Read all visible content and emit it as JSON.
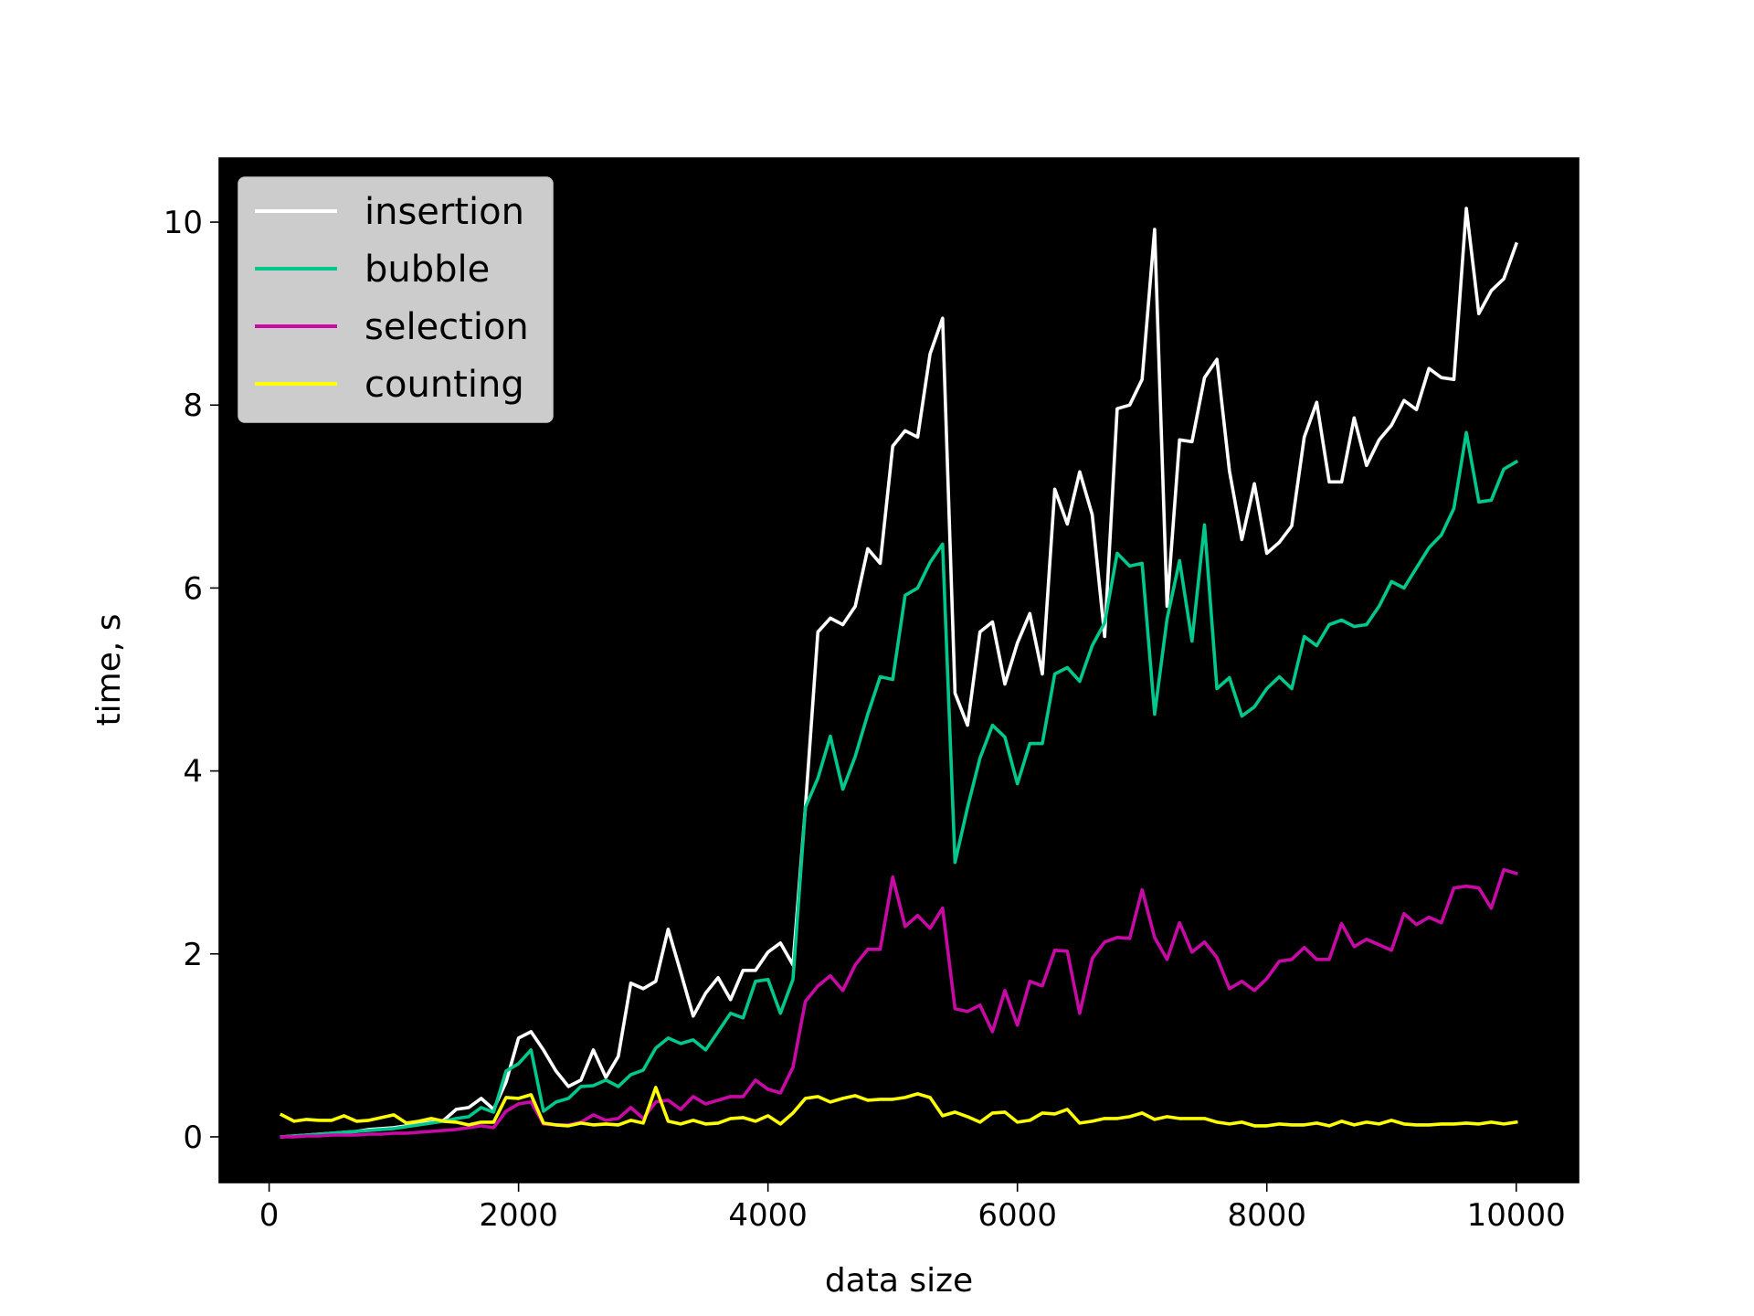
{
  "chart_data": {
    "type": "line",
    "title": "",
    "xlabel": "data size",
    "ylabel": "time, s",
    "xlim": [
      -400,
      10500
    ],
    "ylim": [
      -0.5,
      10.7
    ],
    "xticks": [
      0,
      2000,
      4000,
      6000,
      8000,
      10000
    ],
    "xtick_labels": [
      "0",
      "2000",
      "4000",
      "6000",
      "8000",
      "10000"
    ],
    "yticks": [
      0,
      2,
      4,
      6,
      8,
      10
    ],
    "ytick_labels": [
      "0",
      "2",
      "4",
      "6",
      "8",
      "10"
    ],
    "plot_background": "#000000",
    "grid": false,
    "legend_position": "top-left",
    "x": [
      100,
      200,
      300,
      400,
      500,
      600,
      700,
      800,
      900,
      1000,
      1100,
      1200,
      1300,
      1400,
      1500,
      1600,
      1700,
      1800,
      1900,
      2000,
      2100,
      2200,
      2300,
      2400,
      2500,
      2600,
      2700,
      2800,
      2900,
      3000,
      3100,
      3200,
      3300,
      3400,
      3500,
      3600,
      3700,
      3800,
      3900,
      4000,
      4100,
      4200,
      4300,
      4400,
      4500,
      4600,
      4700,
      4800,
      4900,
      5000,
      5100,
      5200,
      5300,
      5400,
      5500,
      5600,
      5700,
      5800,
      5900,
      6000,
      6100,
      6200,
      6300,
      6400,
      6500,
      6600,
      6700,
      6800,
      6900,
      7000,
      7100,
      7200,
      7300,
      7400,
      7500,
      7600,
      7700,
      7800,
      7900,
      8000,
      8100,
      8200,
      8300,
      8400,
      8500,
      8600,
      8700,
      8800,
      8900,
      9000,
      9100,
      9200,
      9300,
      9400,
      9500,
      9600,
      9700,
      9800,
      9900,
      10000
    ],
    "series": [
      {
        "name": "insertion",
        "color": "#ffffff",
        "values": [
          0.0,
          0.01,
          0.02,
          0.03,
          0.04,
          0.05,
          0.06,
          0.08,
          0.09,
          0.1,
          0.12,
          0.14,
          0.16,
          0.18,
          0.3,
          0.32,
          0.42,
          0.3,
          0.6,
          1.08,
          1.15,
          0.95,
          0.72,
          0.55,
          0.62,
          0.95,
          0.65,
          0.88,
          1.68,
          1.62,
          1.7,
          2.27,
          1.8,
          1.32,
          1.57,
          1.74,
          1.5,
          1.82,
          1.82,
          2.02,
          2.12,
          1.88,
          3.6,
          5.52,
          5.67,
          5.6,
          5.8,
          6.43,
          6.27,
          7.55,
          7.72,
          7.65,
          8.56,
          8.95,
          4.85,
          4.5,
          5.52,
          5.63,
          4.95,
          5.4,
          5.72,
          5.06,
          7.08,
          6.7,
          7.27,
          6.8,
          5.47,
          7.96,
          8.0,
          8.28,
          9.92,
          5.8,
          7.62,
          7.6,
          8.3,
          8.5,
          7.28,
          6.53,
          7.14,
          6.38,
          6.5,
          6.68,
          7.65,
          8.03,
          7.16,
          7.16,
          7.86,
          7.34,
          7.62,
          7.78,
          8.05,
          7.95,
          8.4,
          8.3,
          8.28,
          10.15,
          9.0,
          9.25,
          9.38,
          9.76
        ]
      },
      {
        "name": "bubble",
        "color": "#00c88c",
        "values": [
          0.0,
          0.01,
          0.02,
          0.03,
          0.04,
          0.05,
          0.06,
          0.07,
          0.08,
          0.09,
          0.11,
          0.13,
          0.15,
          0.17,
          0.2,
          0.22,
          0.32,
          0.27,
          0.72,
          0.8,
          0.95,
          0.28,
          0.38,
          0.42,
          0.55,
          0.56,
          0.62,
          0.55,
          0.68,
          0.73,
          0.97,
          1.08,
          1.02,
          1.06,
          0.95,
          1.15,
          1.35,
          1.3,
          1.7,
          1.72,
          1.35,
          1.72,
          3.6,
          3.92,
          4.38,
          3.8,
          4.16,
          4.62,
          5.03,
          5.0,
          5.92,
          6.0,
          6.28,
          6.48,
          3.0,
          3.6,
          4.14,
          4.5,
          4.37,
          3.86,
          4.3,
          4.3,
          5.06,
          5.13,
          4.98,
          5.37,
          5.62,
          6.38,
          6.24,
          6.27,
          4.62,
          5.66,
          6.3,
          5.42,
          6.69,
          4.9,
          5.02,
          4.6,
          4.7,
          4.9,
          5.03,
          4.9,
          5.47,
          5.37,
          5.6,
          5.65,
          5.58,
          5.6,
          5.8,
          6.07,
          6.0,
          6.22,
          6.44,
          6.58,
          6.87,
          7.7,
          6.94,
          6.96,
          7.3,
          7.38
        ]
      },
      {
        "name": "selection",
        "color": "#c80aa5",
        "values": [
          0.0,
          0.0,
          0.01,
          0.01,
          0.02,
          0.02,
          0.02,
          0.03,
          0.03,
          0.04,
          0.04,
          0.05,
          0.06,
          0.07,
          0.08,
          0.1,
          0.12,
          0.1,
          0.28,
          0.36,
          0.38,
          0.14,
          0.13,
          0.13,
          0.16,
          0.24,
          0.18,
          0.2,
          0.32,
          0.2,
          0.38,
          0.4,
          0.3,
          0.44,
          0.36,
          0.4,
          0.44,
          0.44,
          0.62,
          0.52,
          0.48,
          0.76,
          1.48,
          1.65,
          1.76,
          1.6,
          1.88,
          2.05,
          2.05,
          2.84,
          2.3,
          2.42,
          2.28,
          2.5,
          1.4,
          1.37,
          1.44,
          1.15,
          1.6,
          1.22,
          1.7,
          1.65,
          2.04,
          2.03,
          1.35,
          1.95,
          2.13,
          2.18,
          2.17,
          2.7,
          2.18,
          1.94,
          2.34,
          2.02,
          2.13,
          1.96,
          1.62,
          1.7,
          1.6,
          1.73,
          1.92,
          1.94,
          2.07,
          1.94,
          1.94,
          2.33,
          2.08,
          2.16,
          2.1,
          2.04,
          2.44,
          2.32,
          2.4,
          2.34,
          2.72,
          2.74,
          2.72,
          2.5,
          2.92,
          2.88
        ]
      },
      {
        "name": "counting",
        "color": "#ffff00",
        "values": [
          0.24,
          0.17,
          0.19,
          0.18,
          0.18,
          0.23,
          0.17,
          0.18,
          0.21,
          0.24,
          0.15,
          0.17,
          0.2,
          0.17,
          0.16,
          0.13,
          0.16,
          0.16,
          0.43,
          0.42,
          0.46,
          0.15,
          0.13,
          0.12,
          0.15,
          0.13,
          0.14,
          0.13,
          0.18,
          0.15,
          0.54,
          0.17,
          0.14,
          0.18,
          0.14,
          0.15,
          0.2,
          0.21,
          0.17,
          0.23,
          0.14,
          0.26,
          0.42,
          0.44,
          0.38,
          0.42,
          0.45,
          0.4,
          0.41,
          0.41,
          0.43,
          0.47,
          0.43,
          0.23,
          0.27,
          0.22,
          0.16,
          0.26,
          0.27,
          0.16,
          0.18,
          0.26,
          0.25,
          0.3,
          0.15,
          0.17,
          0.2,
          0.2,
          0.22,
          0.26,
          0.19,
          0.22,
          0.2,
          0.2,
          0.2,
          0.16,
          0.14,
          0.16,
          0.12,
          0.12,
          0.14,
          0.13,
          0.13,
          0.15,
          0.12,
          0.17,
          0.13,
          0.16,
          0.14,
          0.18,
          0.14,
          0.13,
          0.13,
          0.14,
          0.14,
          0.15,
          0.14,
          0.16,
          0.14,
          0.16
        ]
      }
    ]
  }
}
